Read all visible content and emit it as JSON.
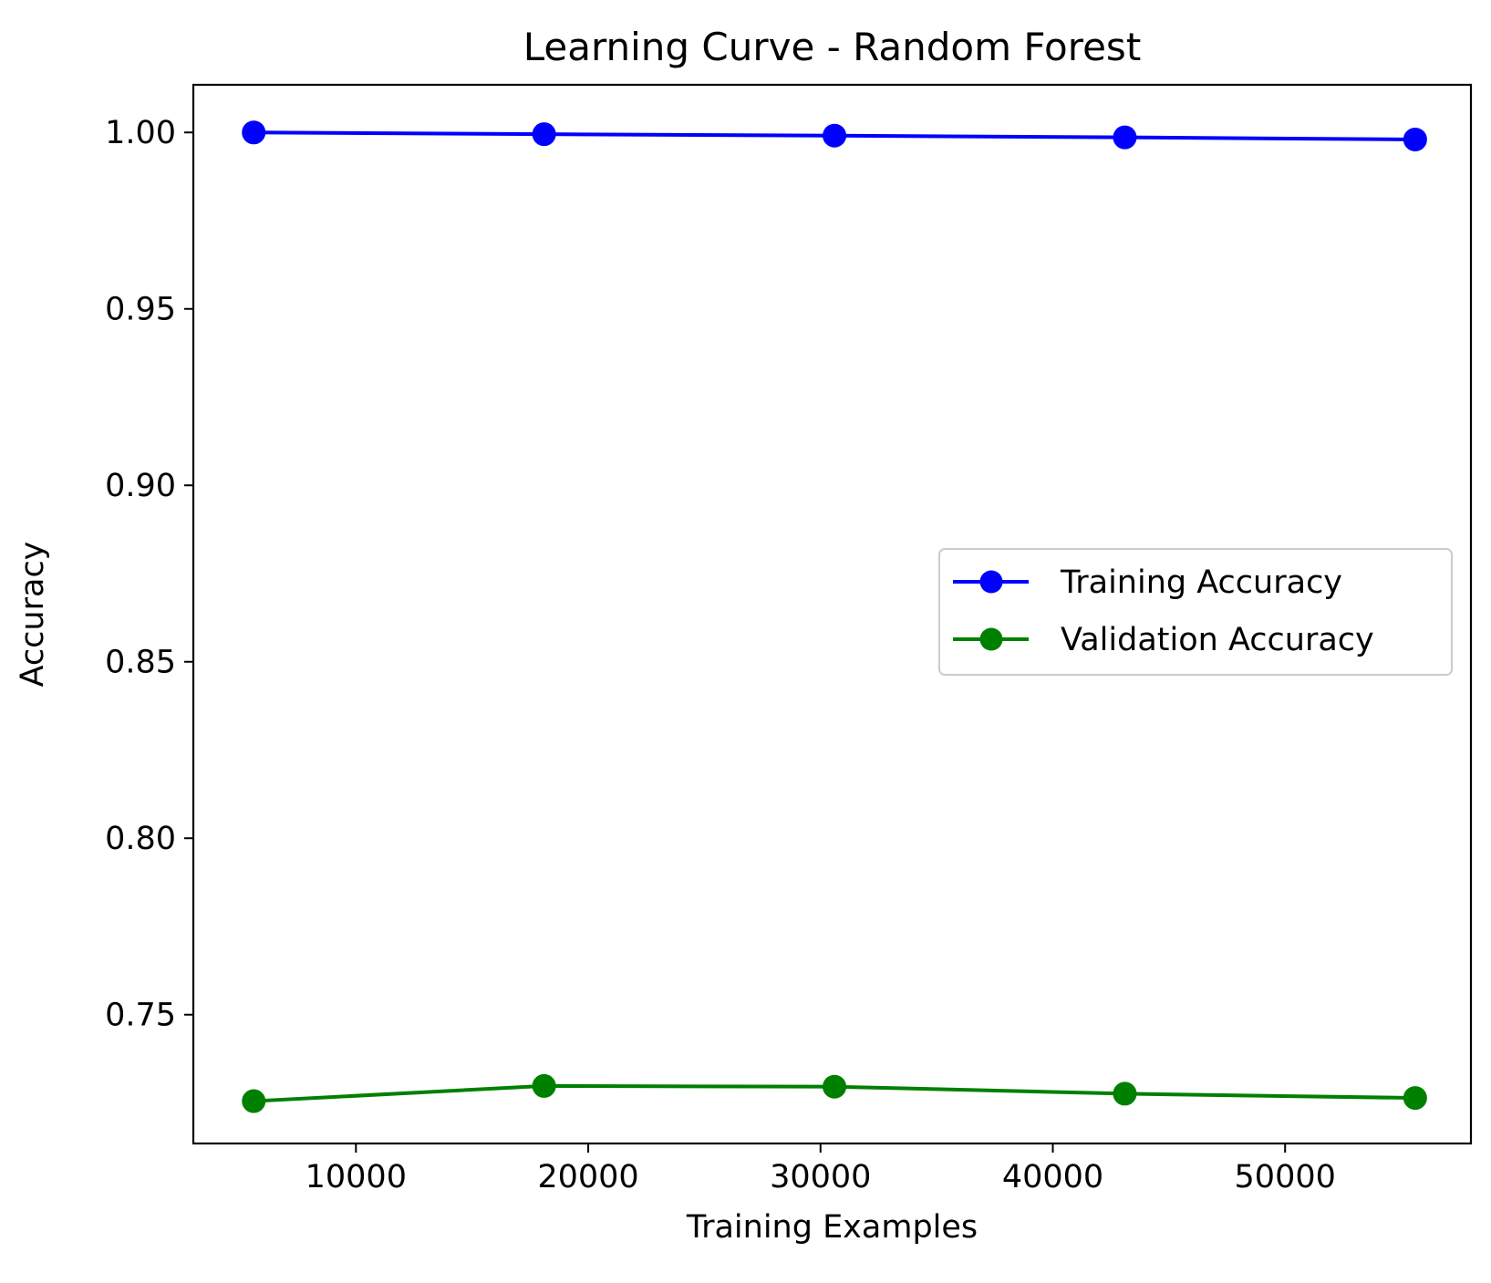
{
  "chart_data": {
    "type": "line",
    "title": "Learning Curve - Random Forest",
    "xlabel": "Training Examples",
    "ylabel": "Accuracy",
    "xlim": [
      3000,
      58000
    ],
    "ylim": [
      0.7135,
      1.0135
    ],
    "xticks": [
      10000,
      20000,
      30000,
      40000,
      50000
    ],
    "xtick_labels": [
      "10000",
      "20000",
      "30000",
      "40000",
      "50000"
    ],
    "yticks": [
      0.75,
      0.8,
      0.85,
      0.9,
      0.95,
      1.0
    ],
    "ytick_labels": [
      "0.75",
      "0.80",
      "0.85",
      "0.90",
      "0.95",
      "1.00"
    ],
    "grid": false,
    "legend_position": "center-right",
    "x": [
      5600,
      18100,
      30600,
      43100,
      55600
    ],
    "series": [
      {
        "name": "Training Accuracy",
        "color": "#0000ff",
        "marker": "circle",
        "values": [
          1.0,
          0.9995,
          0.9991,
          0.9986,
          0.998
        ]
      },
      {
        "name": "Validation Accuracy",
        "color": "#008000",
        "marker": "circle",
        "values": [
          0.7255,
          0.7298,
          0.7296,
          0.7276,
          0.7264
        ]
      }
    ]
  }
}
